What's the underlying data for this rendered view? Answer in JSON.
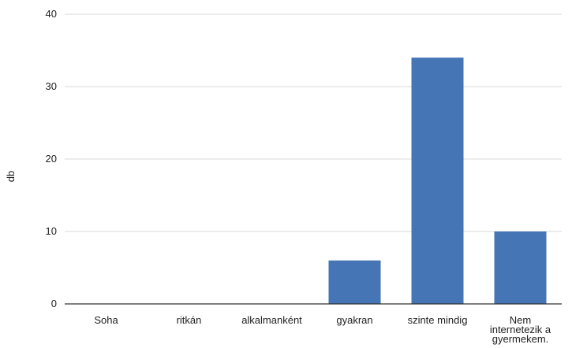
{
  "chart_data": {
    "type": "bar",
    "categories": [
      [
        "Soha"
      ],
      [
        "ritkán"
      ],
      [
        "alkalmanként"
      ],
      [
        "gyakran"
      ],
      [
        "szinte mindig"
      ],
      [
        "Nem",
        "internetezik a",
        "gyermekem."
      ]
    ],
    "values": [
      0,
      0,
      0,
      6,
      34,
      10
    ],
    "ylabel": "db",
    "ylim": [
      0,
      40
    ],
    "yticks": [
      0,
      10,
      20,
      30,
      40
    ],
    "grid": true,
    "bar_color": "#4575b4",
    "grid_color": "#d9d9d9",
    "axis_color": "#333333"
  }
}
